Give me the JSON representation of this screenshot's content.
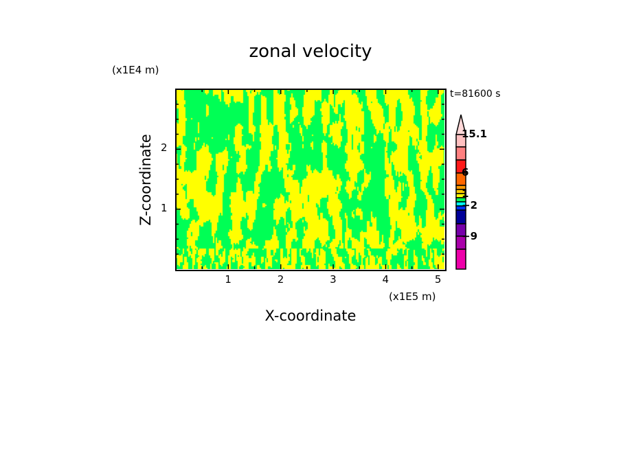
{
  "chart_data": {
    "type": "heatmap",
    "title": "zonal velocity",
    "xlabel": "X-coordinate",
    "ylabel": "Z-coordinate",
    "x_unit": "(x1E5 m)",
    "y_unit": "(x1E4 m)",
    "time_label": "t=81600 s",
    "xlim": [
      0,
      5.12
    ],
    "ylim": [
      0,
      3.0
    ],
    "xticks": [
      "1",
      "2",
      "3",
      "4",
      "5"
    ],
    "yticks": [
      "1",
      "2"
    ],
    "dominant_field_colors": [
      "#ffff00",
      "#00ff55"
    ],
    "colorbar": {
      "labels": [
        "15.1",
        "6",
        "1",
        "−2",
        "−9"
      ],
      "colors_top_to_bottom": [
        "#ffd8d8",
        "#ffc0c0",
        "#ff8080",
        "#ff1a1a",
        "#ff6600",
        "#ff9900",
        "#ffcc00",
        "#ffff00",
        "#00ff55",
        "#00ffff",
        "#0033ff",
        "#000099",
        "#7700aa",
        "#aa00aa",
        "#ee00aa"
      ]
    }
  }
}
